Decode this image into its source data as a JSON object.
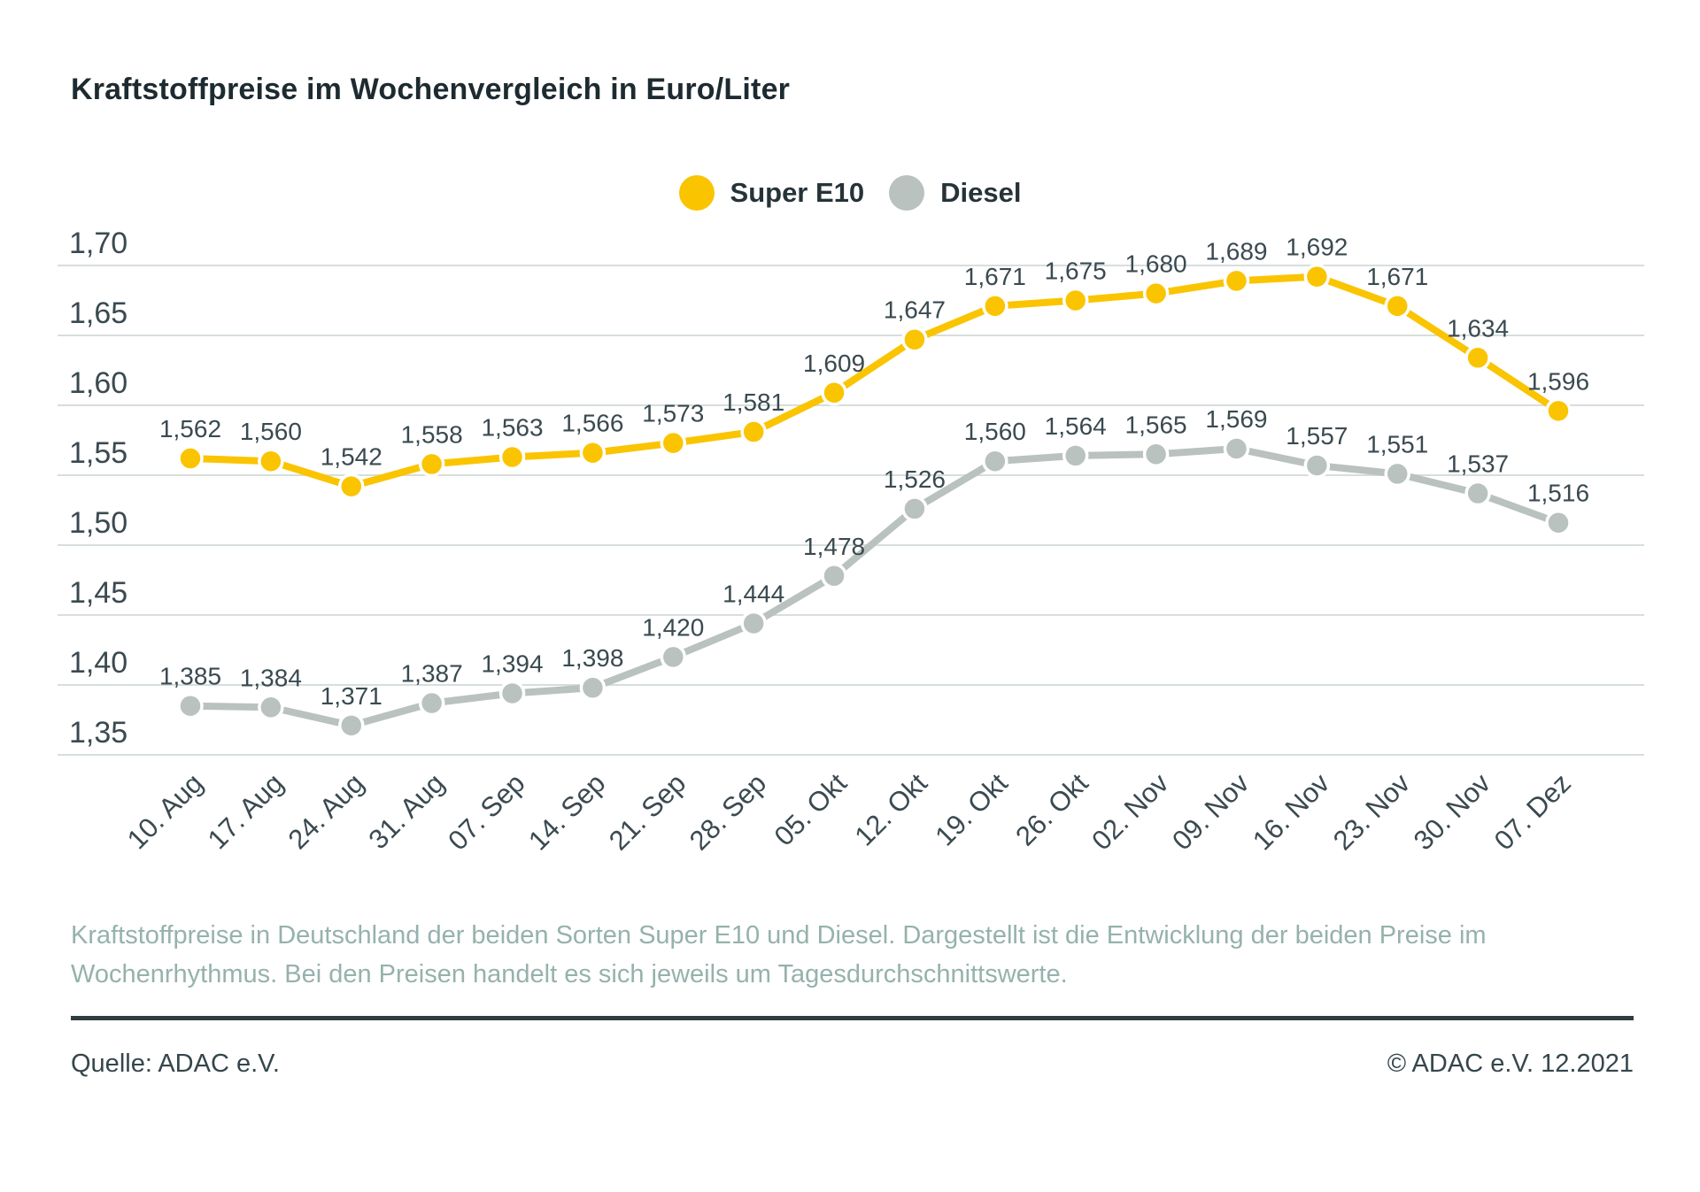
{
  "header": {
    "title": "Kraftstoffpreise im Wochenvergleich in Euro/Liter"
  },
  "legend": {
    "items": [
      {
        "label": "Super E10",
        "color": "#fac401"
      },
      {
        "label": "Diesel",
        "color": "#b9c2be"
      }
    ]
  },
  "chart_data": {
    "type": "line",
    "title": "Kraftstoffpreise im Wochenvergleich in Euro/Liter",
    "categories": [
      "10. Aug",
      "17. Aug",
      "24. Aug",
      "31. Aug",
      "07. Sep",
      "14. Sep",
      "21. Sep",
      "28. Sep",
      "05. Okt",
      "12. Okt",
      "19. Okt",
      "26. Okt",
      "02. Nov",
      "09. Nov",
      "16. Nov",
      "23. Nov",
      "30. Nov",
      "07. Dez"
    ],
    "series": [
      {
        "name": "Super E10",
        "color": "#fac401",
        "values": [
          1.562,
          1.56,
          1.542,
          1.558,
          1.563,
          1.566,
          1.573,
          1.581,
          1.609,
          1.647,
          1.671,
          1.675,
          1.68,
          1.689,
          1.692,
          1.671,
          1.634,
          1.596
        ]
      },
      {
        "name": "Diesel",
        "color": "#b9c2be",
        "values": [
          1.385,
          1.384,
          1.371,
          1.387,
          1.394,
          1.398,
          1.42,
          1.444,
          1.478,
          1.526,
          1.56,
          1.564,
          1.565,
          1.569,
          1.557,
          1.551,
          1.537,
          1.516
        ]
      }
    ],
    "ylim": [
      1.35,
      1.7
    ],
    "ytick_step": 0.05,
    "ytick_labels": [
      "1,70",
      "1,65",
      "1,60",
      "1,55",
      "1,50",
      "1,45",
      "1,40",
      "1,35"
    ],
    "grid": true,
    "legend_position": "top-center",
    "x_label_rotation": -45,
    "value_label_decimal_separator": ","
  },
  "footnote": {
    "text": "Kraftstoffpreise in Deutschland der beiden Sorten Super E10 und Diesel. Dargestellt ist die Entwicklung der beiden Preise im Wochenrhythmus. Bei den Preisen handelt es sich jeweils um Tagesdurchschnittswerte."
  },
  "footer": {
    "source": "Quelle: ADAC e.V.",
    "copyright": "© ADAC e.V. 12.2021"
  },
  "colors": {
    "grid": "#d6dedb",
    "axis_text": "#3a4a50",
    "value_text": "#3a4a50"
  }
}
